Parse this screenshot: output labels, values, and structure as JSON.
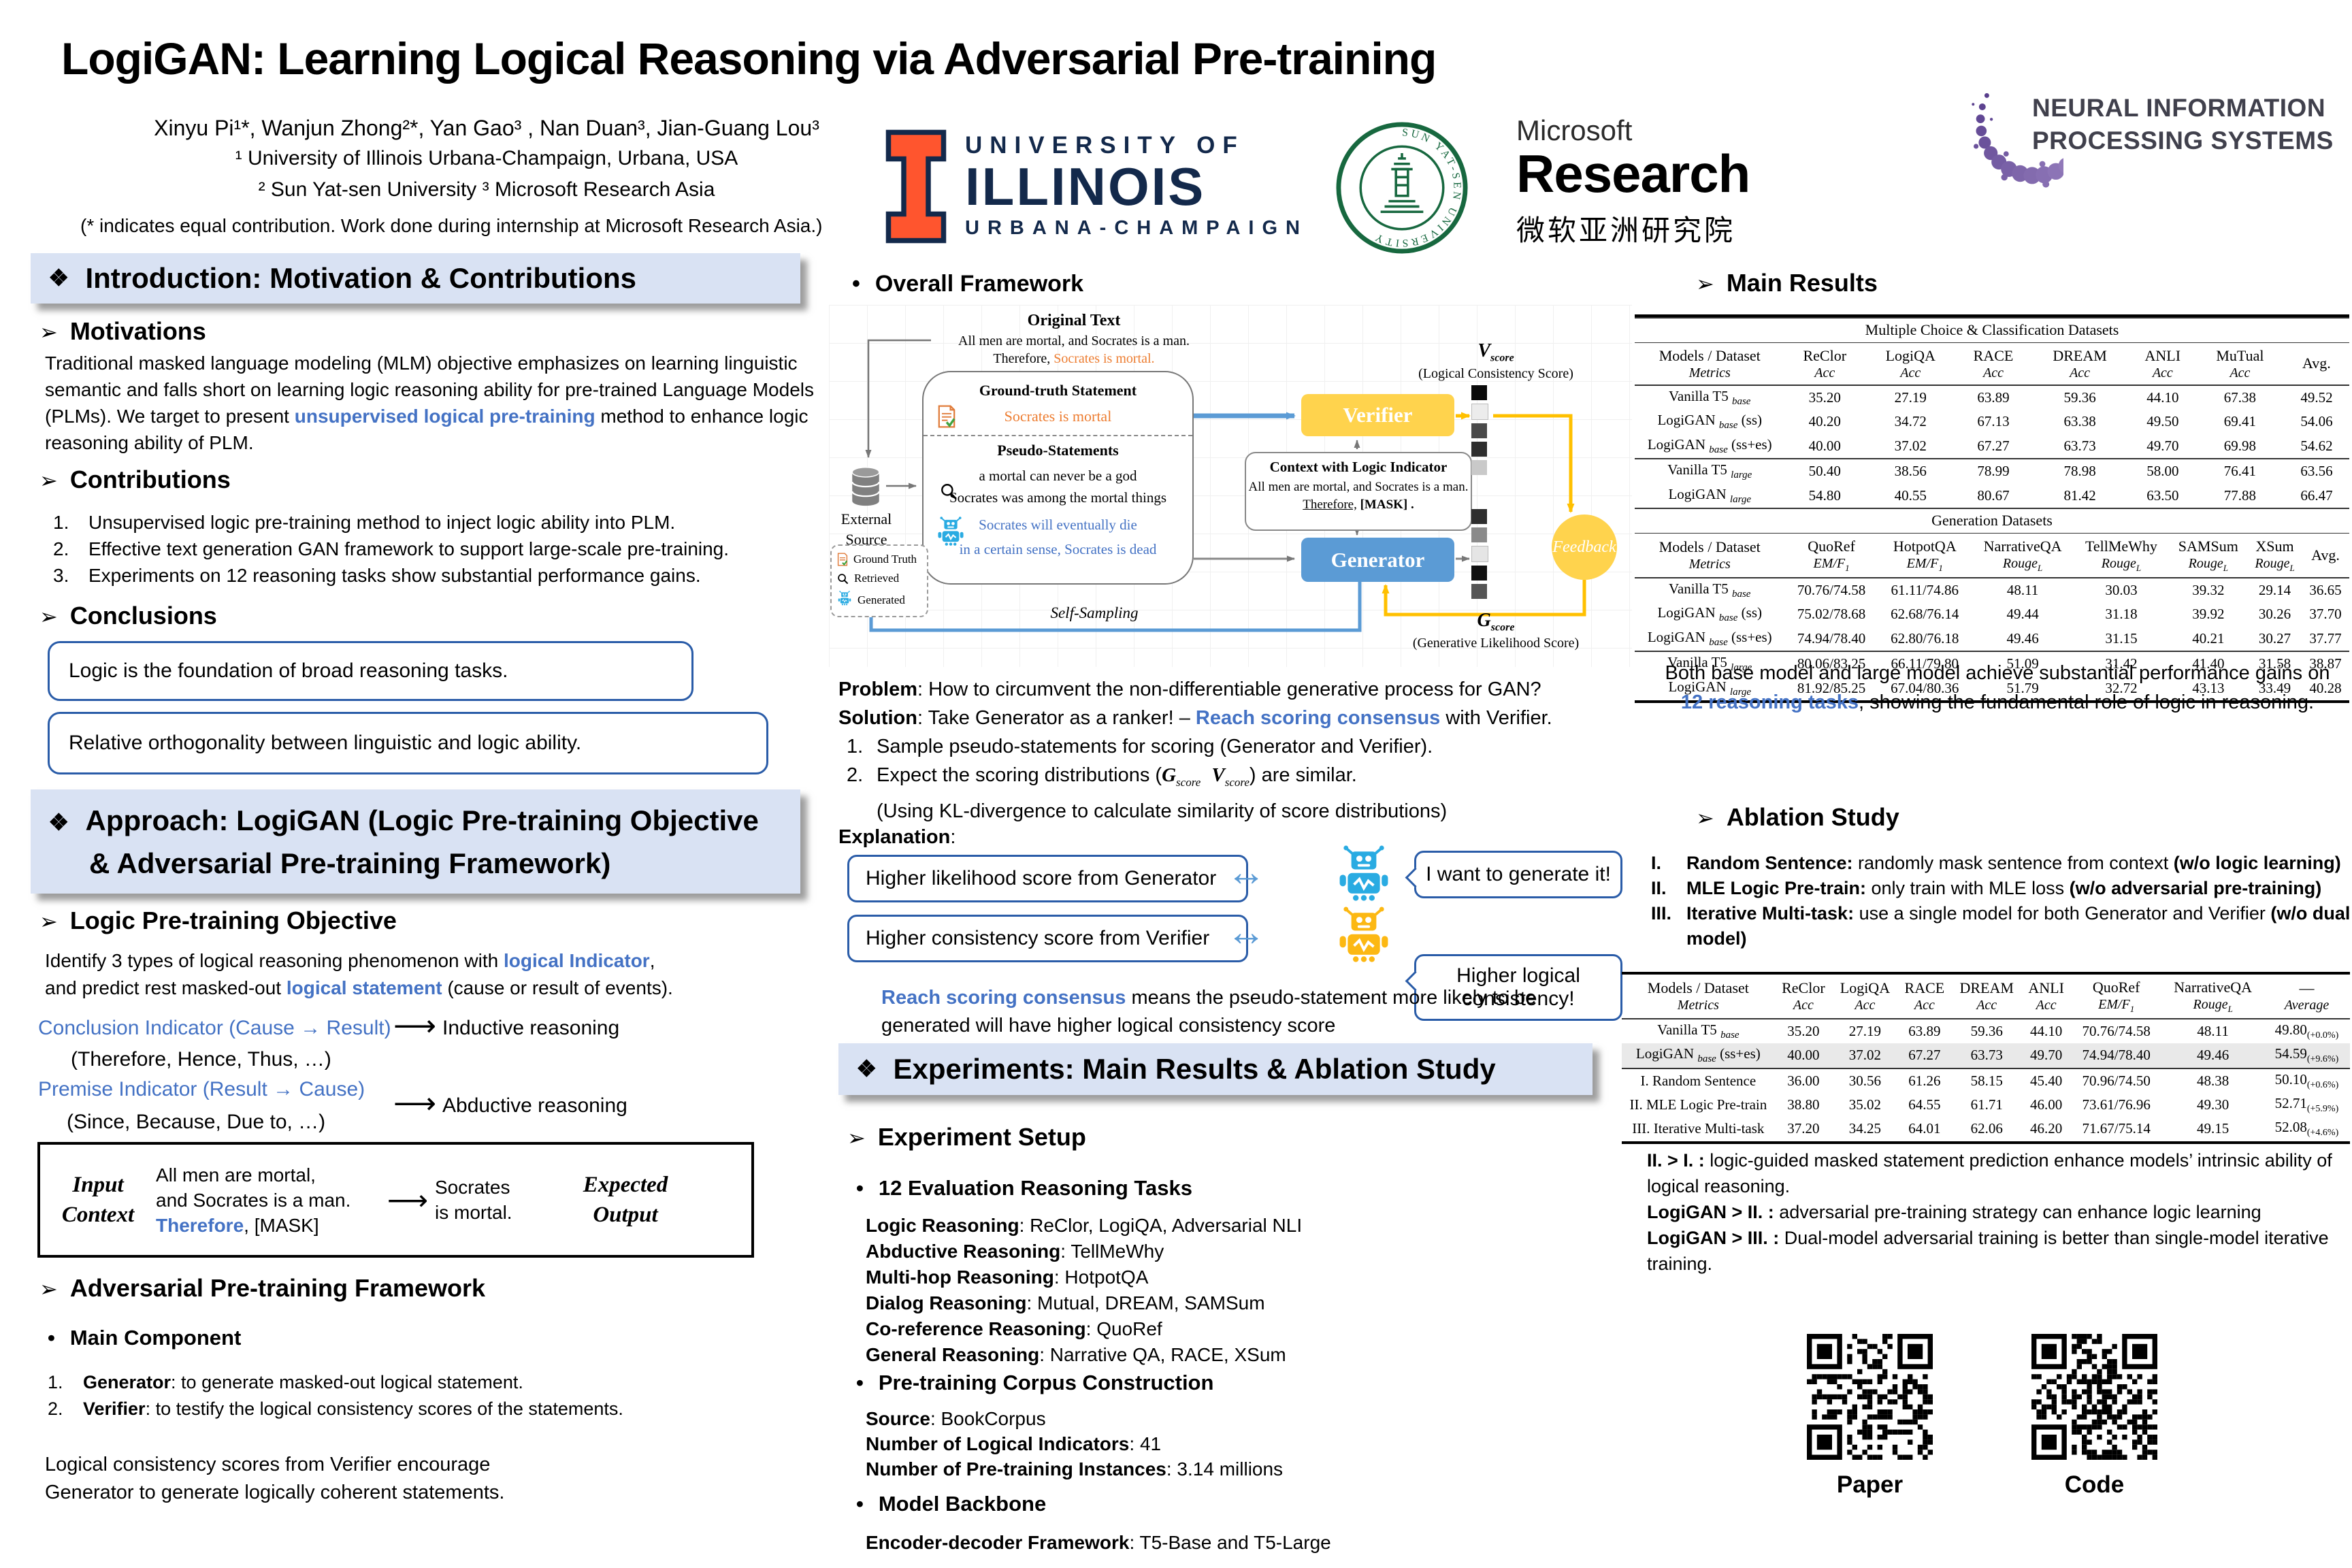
{
  "colors": {
    "accent_blue": "#4472C4",
    "orange": "#ED7D31",
    "band_bg": "#D9E2F3",
    "box_border_blue": "#2A5CA8",
    "verifier_yellow": "#FFD34D",
    "generator_blue": "#5B9BD5",
    "arrow_yellow": "#FFC000",
    "robot_blue": "#29ABE2",
    "robot_yellow": "#FCB813",
    "uiuc_orange": "#FF552E",
    "uiuc_navy": "#13294B",
    "sysu_green": "#17683F",
    "neurips_purple_dark": "#5D4691",
    "neurips_purple_light": "#B4A1D8"
  },
  "header": {
    "title": "LogiGAN: Learning Logical Reasoning via Adversarial Pre-training",
    "authors": "Xinyu Pi¹*, Wanjun Zhong²*, Yan Gao³ , Nan Duan³, Jian-Guang Lou³",
    "affiliation1": "¹ University of Illinois Urbana-Champaign, Urbana, USA",
    "affiliation2": "² Sun Yat-sen University ³ Microsoft Research Asia",
    "note": "(* indicates equal contribution. Work done during internship at Microsoft Research Asia.)",
    "uiuc_line1": "UNIVERSITY OF",
    "uiuc_line2": "ILLINOIS",
    "uiuc_line3": "URBANA-CHAMPAIGN",
    "sysu_ring": "SUN YAT-SEN UNIVERSITY",
    "msr_line1": "Microsoft",
    "msr_line2": "Research",
    "msr_line3": "微软亚洲研究院",
    "neurips_line1": "NEURAL INFORMATION",
    "neurips_line2": "PROCESSING SYSTEMS"
  },
  "intro": {
    "header": "Introduction: Motivation & Contributions",
    "motivations_title": "Motivations",
    "motivations_p1": "Traditional masked language modeling (MLM) objective emphasizes on learning linguistic semantic and falls short on learning logic reasoning ability for pre-trained Language Models (PLMs). We target to present ",
    "motivations_highlight": "unsupervised logical pre-training",
    "motivations_p2": " method to enhance logic reasoning ability of PLM.",
    "contributions_title": "Contributions",
    "contributions": [
      "Unsupervised logic pre-training method to inject logic ability into PLM.",
      "Effective text generation GAN framework to support large-scale pre-training.",
      "Experiments on 12 reasoning tasks show substantial performance gains."
    ],
    "conclusions_title": "Conclusions",
    "conclusion1": "Logic is the foundation of broad reasoning tasks.",
    "conclusion2": "Relative orthogonality between linguistic and logic ability."
  },
  "approach": {
    "header_line1": "Approach: LogiGAN (Logic Pre-training Objective",
    "header_line2": "& Adversarial Pre-training Framework)",
    "objective_title": "Logic Pre-training Objective",
    "obj_p1": "Identify 3 types of logical reasoning phenomenon with ",
    "obj_h1": "logical Indicator",
    "obj_comma": ",",
    "obj_p2": "and predict rest masked-out ",
    "obj_h2": "logical statement",
    "obj_p3": " (cause or result of events).",
    "conclusion_indicator": "Conclusion Indicator (Cause → Result)",
    "conclusion_examples": "(Therefore, Hence, Thus, …)",
    "inductive": "Inductive reasoning",
    "premise_indicator": "Premise Indicator (Result → Cause)",
    "premise_examples": "(Since, Because, Due to, …)",
    "abductive": "Abductive reasoning",
    "io_box": {
      "input_label1": "Input",
      "input_label2": "Context",
      "ctx_line1": "All men are mortal,",
      "ctx_line2": "and Socrates is a man.",
      "ctx_line3_blue": "Therefore",
      "ctx_line3_rest": ", [MASK]",
      "out_line1": "Socrates",
      "out_line2": "is mortal.",
      "output_label1": "Expected",
      "output_label2": "Output"
    },
    "framework_title": "Adversarial Pre-training Framework",
    "main_component_title": "Main Component",
    "components": [
      {
        "bold": "Generator",
        "rest": ": to generate masked-out logical statement."
      },
      {
        "bold": "Verifier",
        "rest": ": to testify the logical consistency scores of the statements."
      }
    ],
    "closing_line1": "Logical consistency scores from Verifier encourage",
    "closing_line2": "Generator to generate logically coherent statements."
  },
  "framework": {
    "title": "Overall Framework",
    "original_text_title": "Original Text",
    "orig_line1": "All men are mortal, and Socrates is a man.",
    "orig_line2_pre": "Therefore, ",
    "orig_line2_orange": "Socrates is mortal.",
    "ground_truth_title": "Ground-truth Statement",
    "ground_truth_text": "Socrates is mortal",
    "pseudo_title": "Pseudo-Statements",
    "pseudo1": "a mortal can never be a god",
    "pseudo2": "Socrates was among the mortal things",
    "pseudo3": "Socrates will eventually die",
    "pseudo4": "in a certain sense, Socrates is dead",
    "external_source_l1": "External",
    "external_source_l2": "Source",
    "legend": [
      "Ground Truth",
      "Retrieved",
      "Generated"
    ],
    "verifier": "Verifier",
    "generator": "Generator",
    "context_title": "Context with Logic Indicator",
    "context_line1": "All men are mortal, and Socrates is a man.",
    "context_line2_u": "Therefore,",
    "context_line2_rest": "[MASK] .",
    "vscore_letter": "V",
    "score_sub": "score",
    "vscore_caption": "(Logical Consistency Score)",
    "gscore_letter": "G",
    "gscore_caption": "(Generative Likelihood Score)",
    "feedback": "Feedback",
    "self_sampling": "Self-Sampling"
  },
  "middle": {
    "problem_bold": "Problem",
    "problem_rest": ": How to circumvent the non-differentiable generative process for GAN?",
    "solution_bold": "Solution",
    "solution_pre": ": Take Generator as a ranker! – ",
    "solution_blue": "Reach scoring consensus",
    "solution_post": " with Verifier.",
    "step1": "Sample pseudo-statements for scoring (Generator and Verifier).",
    "step2_pre": "Expect the scoring distributions (",
    "step2_g": "G",
    "step2_v": "V",
    "score_sub": "score",
    "step2_post": ") are similar.",
    "step2b": "(Using KL-divergence to calculate similarity of score distributions)",
    "explanation_title": "Explanation",
    "explanation_colon": ":",
    "exp_box1": "Higher likelihood score from Generator",
    "exp_bubble1": "I want to generate it!",
    "exp_box2": "Higher consistency score from Verifier",
    "exp_bubble2_l1": "Higher logical",
    "exp_bubble2_l2": "consistency!",
    "consensus_blue": "Reach scoring consensus",
    "consensus_rest": " means the pseudo-statement more likely to be generated will have higher logical consistency score",
    "experiments_header": "Experiments: Main Results & Ablation Study",
    "setup_title": "Experiment Setup",
    "tasks_title": "12 Evaluation Reasoning Tasks",
    "tasks": [
      {
        "label": "Logic Reasoning",
        "value": ":  ReClor, LogiQA, Adversarial NLI"
      },
      {
        "label": "Abductive Reasoning",
        "value": ":  TellMeWhy"
      },
      {
        "label": "Multi-hop Reasoning",
        "value": ":  HotpotQA"
      },
      {
        "label": "Dialog Reasoning",
        "value": ":  Mutual, DREAM, SAMSum"
      },
      {
        "label": "Co-reference Reasoning",
        "value": ":  QuoRef"
      },
      {
        "label": "General Reasoning",
        "value": ":  Narrative QA, RACE, XSum"
      }
    ],
    "corpus_title": "Pre-training Corpus Construction",
    "corpus": [
      {
        "label": "Source",
        "value": ":  BookCorpus"
      },
      {
        "label": "Number of Logical Indicators",
        "value": ":  41"
      },
      {
        "label": "Number of Pre-training Instances",
        "value": ": 3.14 millions"
      }
    ],
    "backbone_title": "Model Backbone",
    "backbone_label": "Encoder-decoder Framework",
    "backbone_value": ":  T5-Base and T5-Large"
  },
  "results": {
    "title": "Main Results",
    "table1": {
      "band": "Multiple Choice & Classification Datasets",
      "columns": [
        {
          "name": "Models / Dataset",
          "metric": {
            "t": "Metrics"
          }
        },
        {
          "name": "ReClor",
          "metric": {
            "t": "Acc"
          }
        },
        {
          "name": "LogiQA",
          "metric": {
            "t": "Acc"
          }
        },
        {
          "name": "RACE",
          "metric": {
            "t": "Acc"
          }
        },
        {
          "name": "DREAM",
          "metric": {
            "t": "Acc"
          }
        },
        {
          "name": "ANLI",
          "metric": {
            "t": "Acc"
          }
        },
        {
          "name": "MuTual",
          "metric": {
            "t": "Acc"
          }
        },
        {
          "name": "Avg.",
          "metric": {
            "t": ""
          }
        }
      ],
      "groups": [
        {
          "rows": [
            {
              "model": {
                "pre": "Vanilla T5 ",
                "sub": "base"
              },
              "cells": [
                "35.20",
                "27.19",
                "63.89",
                "59.36",
                "44.10",
                "67.38",
                "49.52"
              ]
            },
            {
              "model": {
                "pre": "LogiGAN ",
                "sub": "base",
                "post": " (ss)"
              },
              "cells": [
                "40.20",
                "34.72",
                "67.13",
                "63.38",
                "49.50",
                "69.41",
                "54.06"
              ]
            },
            {
              "model": {
                "pre": "LogiGAN ",
                "sub": "base",
                "post": " (ss+es)"
              },
              "cells": [
                "40.00",
                "37.02",
                "67.27",
                "63.73",
                "49.70",
                "69.98",
                "54.62"
              ]
            }
          ]
        },
        {
          "rows": [
            {
              "model": {
                "pre": "Vanilla T5 ",
                "sub": "large"
              },
              "cells": [
                "50.40",
                "38.56",
                "78.99",
                "78.98",
                "58.00",
                "76.41",
                "63.56"
              ]
            },
            {
              "model": {
                "pre": "LogiGAN ",
                "sub": "large"
              },
              "cells": [
                "54.80",
                "40.55",
                "80.67",
                "81.42",
                "63.50",
                "77.88",
                "66.47"
              ]
            }
          ]
        }
      ]
    },
    "table2": {
      "band": "Generation Datasets",
      "columns": [
        {
          "name": "Models / Dataset",
          "metric": {
            "t": "Metrics"
          }
        },
        {
          "name": "QuoRef",
          "metric": {
            "t": "EM/F",
            "sub": "1"
          }
        },
        {
          "name": "HotpotQA",
          "metric": {
            "t": "EM/F",
            "sub": "1"
          }
        },
        {
          "name": "NarrativeQA",
          "metric": {
            "t": "Rouge",
            "sub": "L"
          }
        },
        {
          "name": "TellMeWhy",
          "metric": {
            "t": "Rouge",
            "sub": "L"
          }
        },
        {
          "name": "SAMSum",
          "metric": {
            "t": "Rouge",
            "sub": "L"
          }
        },
        {
          "name": "XSum",
          "metric": {
            "t": "Rouge",
            "sub": "L"
          }
        },
        {
          "name": "Avg.",
          "metric": {
            "t": ""
          }
        }
      ],
      "groups": [
        {
          "rows": [
            {
              "model": {
                "pre": "Vanilla T5 ",
                "sub": "base"
              },
              "cells": [
                "70.76/74.58",
                "61.11/74.86",
                "48.11",
                "30.03",
                "39.32",
                "29.14",
                "36.65"
              ]
            },
            {
              "model": {
                "pre": "LogiGAN ",
                "sub": "base",
                "post": " (ss)"
              },
              "cells": [
                "75.02/78.68",
                "62.68/76.14",
                "49.44",
                "31.18",
                "39.92",
                "30.26",
                "37.70"
              ]
            },
            {
              "model": {
                "pre": "LogiGAN ",
                "sub": "base",
                "post": " (ss+es)"
              },
              "cells": [
                "74.94/78.40",
                "62.80/76.18",
                "49.46",
                "31.15",
                "40.21",
                "30.27",
                "37.77"
              ]
            }
          ]
        },
        {
          "rows": [
            {
              "model": {
                "pre": "Vanilla T5 ",
                "sub": "large"
              },
              "cells": [
                "80.06/83.25",
                "66.11/79.80",
                "51.09",
                "31.42",
                "41.40",
                "31.58",
                "38.87"
              ]
            },
            {
              "model": {
                "pre": "LogiGAN ",
                "sub": "large"
              },
              "cells": [
                "81.92/85.25",
                "67.04/80.36",
                "51.79",
                "32.72",
                "43.13",
                "33.49",
                "40.28"
              ]
            }
          ]
        }
      ]
    },
    "note_pre": "Both base model and large model achieve  substantial performance gains on",
    "note_blue": "12 reasoning tasks",
    "note_post": ", showing the fundamental role of logic in reasoning."
  },
  "ablation": {
    "title": "Ablation Study",
    "items": [
      {
        "num": "I.",
        "bold": "Random Sentence:",
        "rest": " randomly mask sentence from context ",
        "bold2": "(w/o logic learning)"
      },
      {
        "num": "II.",
        "bold": "MLE Logic Pre-train:",
        "rest": " only train with MLE loss ",
        "bold2": "(w/o adversarial pre-training)"
      },
      {
        "num": "III.",
        "bold": "Iterative Multi-task:",
        "rest": " use a single model for both Generator and Verifier ",
        "bold2": "(w/o dual model)"
      }
    ],
    "table": {
      "columns": [
        {
          "name": "Models / Dataset",
          "metric": {
            "t": "Metrics"
          }
        },
        {
          "name": "ReClor",
          "metric": {
            "t": "Acc"
          }
        },
        {
          "name": "LogiQA",
          "metric": {
            "t": "Acc"
          }
        },
        {
          "name": "RACE",
          "metric": {
            "t": "Acc"
          }
        },
        {
          "name": "DREAM",
          "metric": {
            "t": "Acc"
          }
        },
        {
          "name": "ANLI",
          "metric": {
            "t": "Acc"
          }
        },
        {
          "name": "QuoRef",
          "metric": {
            "t": "EM/F",
            "sub": "1"
          }
        },
        {
          "name": "NarrativeQA",
          "metric": {
            "t": "Rouge",
            "sub": "L"
          }
        },
        {
          "name": "—",
          "metric": {
            "t": "Average"
          }
        }
      ],
      "groups": [
        {
          "rows": [
            {
              "model": {
                "pre": "Vanilla T5 ",
                "sub": "base"
              },
              "cells": [
                "35.20",
                "27.19",
                "63.89",
                "59.36",
                "44.10",
                "70.76/74.58",
                "48.11",
                {
                  "main": "49.80",
                  "note": "(+0.0%)"
                }
              ]
            },
            {
              "model": {
                "pre": "LogiGAN ",
                "sub": "base",
                "post": " (ss+es)"
              },
              "highlight": true,
              "cells": [
                "40.00",
                "37.02",
                "67.27",
                "63.73",
                "49.70",
                "74.94/78.40",
                "49.46",
                {
                  "main": "54.59",
                  "note": "(+9.6%)"
                }
              ]
            }
          ]
        },
        {
          "rows": [
            {
              "model": {
                "pre": "I. Random Sentence"
              },
              "cells": [
                "36.00",
                "30.56",
                "61.26",
                "58.15",
                "45.40",
                "70.96/74.50",
                "48.38",
                {
                  "main": "50.10",
                  "note": "(+0.6%)"
                }
              ]
            },
            {
              "model": {
                "pre": "II. MLE Logic Pre-train"
              },
              "cells": [
                "38.80",
                "35.02",
                "64.55",
                "61.71",
                "46.00",
                "73.61/76.96",
                "49.30",
                {
                  "main": "52.71",
                  "note": "(+5.9%)"
                }
              ]
            },
            {
              "model": {
                "pre": "III. Iterative Multi-task"
              },
              "cells": [
                "37.20",
                "34.25",
                "64.01",
                "62.06",
                "46.20",
                "71.67/75.14",
                "49.15",
                {
                  "main": "52.08",
                  "note": "(+4.6%)"
                }
              ]
            }
          ]
        }
      ]
    },
    "notes": [
      {
        "bold": "II. > I. :",
        "rest": "  logic-guided masked statement prediction enhance models’ intrinsic ability of logical reasoning."
      },
      {
        "bold": "LogiGAN > II. :",
        "rest": " adversarial pre-training strategy can enhance logic learning"
      },
      {
        "bold": "LogiGAN > III. :",
        "rest": "  Dual-model adversarial training is better than single-model iterative training."
      }
    ]
  },
  "qr": {
    "paper_label": "Paper",
    "code_label": "Code"
  }
}
